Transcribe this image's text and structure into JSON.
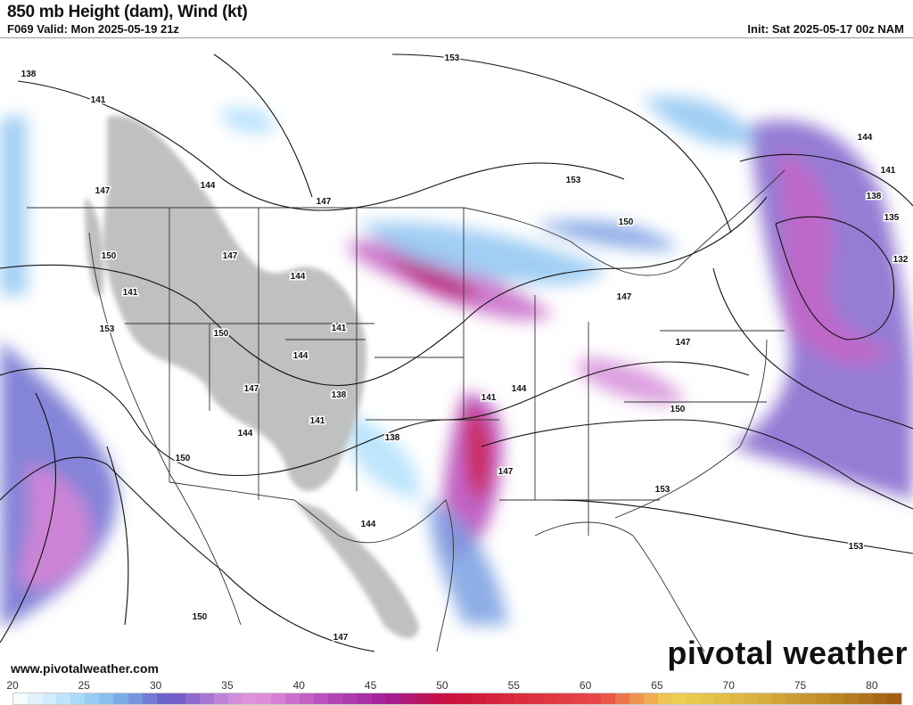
{
  "header": {
    "title": "850 mb Height (dam), Wind (kt)",
    "valid": "F069 Valid: Mon 2025-05-19 21z",
    "init": "Init: Sat 2025-05-17 00z NAM"
  },
  "footer": {
    "url": "www.pivotalweather.com",
    "logo": "pivotal weather"
  },
  "map": {
    "height_labels": [
      "138",
      "141",
      "147",
      "144",
      "150",
      "153",
      "147",
      "144",
      "141",
      "150",
      "144",
      "138",
      "147",
      "141",
      "144",
      "150",
      "153",
      "147",
      "147",
      "147",
      "144",
      "153",
      "150",
      "141",
      "147",
      "150",
      "153",
      "144",
      "138",
      "135",
      "132",
      "141",
      "144",
      "147",
      "150",
      "153",
      "141",
      "138"
    ],
    "terrain_color": "#bdbdbd",
    "contour_color": "#111111",
    "border_color": "#333333"
  },
  "colorbar": {
    "unit": "kt",
    "ticks": [
      "20",
      "25",
      "30",
      "35",
      "40",
      "45",
      "50",
      "55",
      "60",
      "65",
      "70",
      "75",
      "80"
    ],
    "min": 20,
    "max": 82,
    "stops": [
      {
        "v": 20,
        "c": "#ffffff"
      },
      {
        "v": 24,
        "c": "#b3e0fb"
      },
      {
        "v": 27,
        "c": "#7fb8ec"
      },
      {
        "v": 31,
        "c": "#6a57c8"
      },
      {
        "v": 35,
        "c": "#c98ad9"
      },
      {
        "v": 37,
        "c": "#e394dd"
      },
      {
        "v": 42,
        "c": "#b549b8"
      },
      {
        "v": 46,
        "c": "#a31f98"
      },
      {
        "v": 50,
        "c": "#c8103e"
      },
      {
        "v": 55,
        "c": "#d92b3c"
      },
      {
        "v": 61,
        "c": "#e84a4a"
      },
      {
        "v": 64,
        "c": "#f0a050"
      },
      {
        "v": 66,
        "c": "#f0d050"
      },
      {
        "v": 72,
        "c": "#d8b040"
      },
      {
        "v": 77,
        "c": "#c08a26"
      },
      {
        "v": 82,
        "c": "#9c5a10"
      }
    ]
  }
}
